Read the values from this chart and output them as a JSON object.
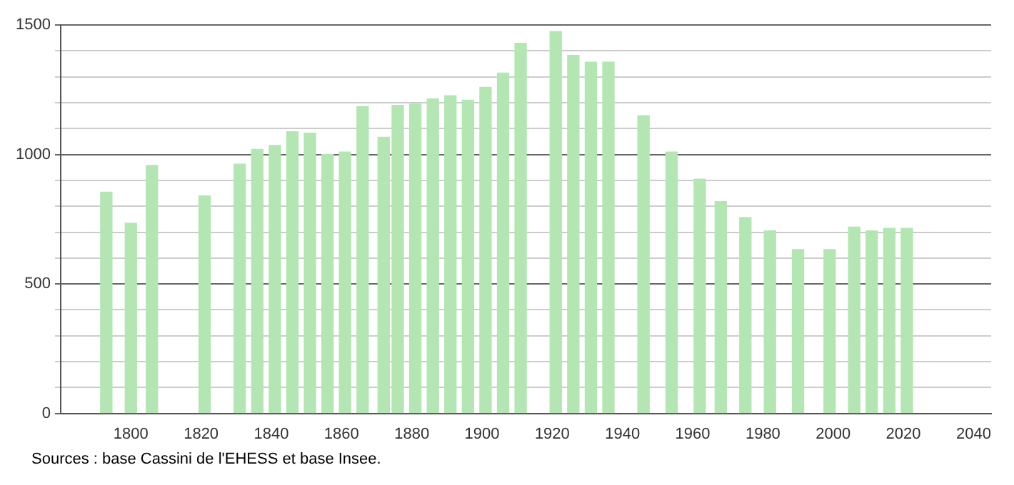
{
  "chart_data": {
    "type": "bar",
    "x": [
      1793,
      1800,
      1806,
      1821,
      1831,
      1836,
      1841,
      1846,
      1851,
      1856,
      1861,
      1866,
      1872,
      1876,
      1881,
      1886,
      1891,
      1896,
      1901,
      1906,
      1911,
      1921,
      1926,
      1931,
      1936,
      1946,
      1954,
      1962,
      1968,
      1975,
      1982,
      1990,
      1999,
      2006,
      2011,
      2016,
      2021
    ],
    "values": [
      855,
      735,
      958,
      840,
      963,
      1020,
      1035,
      1088,
      1083,
      1000,
      1010,
      1185,
      1067,
      1190,
      1195,
      1215,
      1227,
      1210,
      1260,
      1315,
      1430,
      1475,
      1383,
      1357,
      1357,
      1150,
      1010,
      905,
      818,
      757,
      705,
      633,
      633,
      720,
      705,
      715,
      715
    ],
    "color": "#b3e6b3",
    "xlim": [
      1780,
      2045
    ],
    "xticks": [
      1800,
      1820,
      1840,
      1860,
      1880,
      1900,
      1920,
      1940,
      1960,
      1980,
      2000,
      2020,
      2040
    ],
    "ylim": [
      0,
      1500
    ],
    "yticks": [
      0,
      {
        "value": 100,
        "label": null
      },
      {
        "value": 200,
        "label": null
      },
      {
        "value": 300,
        "label": null
      },
      {
        "value": 400,
        "label": null
      },
      500,
      {
        "value": 600,
        "label": null
      },
      {
        "value": 700,
        "label": null
      },
      {
        "value": 800,
        "label": null
      },
      {
        "value": 900,
        "label": null
      },
      1000,
      {
        "value": 1100,
        "label": null
      },
      {
        "value": 1200,
        "label": null
      },
      {
        "value": 1300,
        "label": null
      },
      {
        "value": 1400,
        "label": null
      },
      1500
    ],
    "grid": "y",
    "legend": false,
    "annotations": [
      "Sources : base Cassini de l'EHESS et base Insee."
    ]
  }
}
